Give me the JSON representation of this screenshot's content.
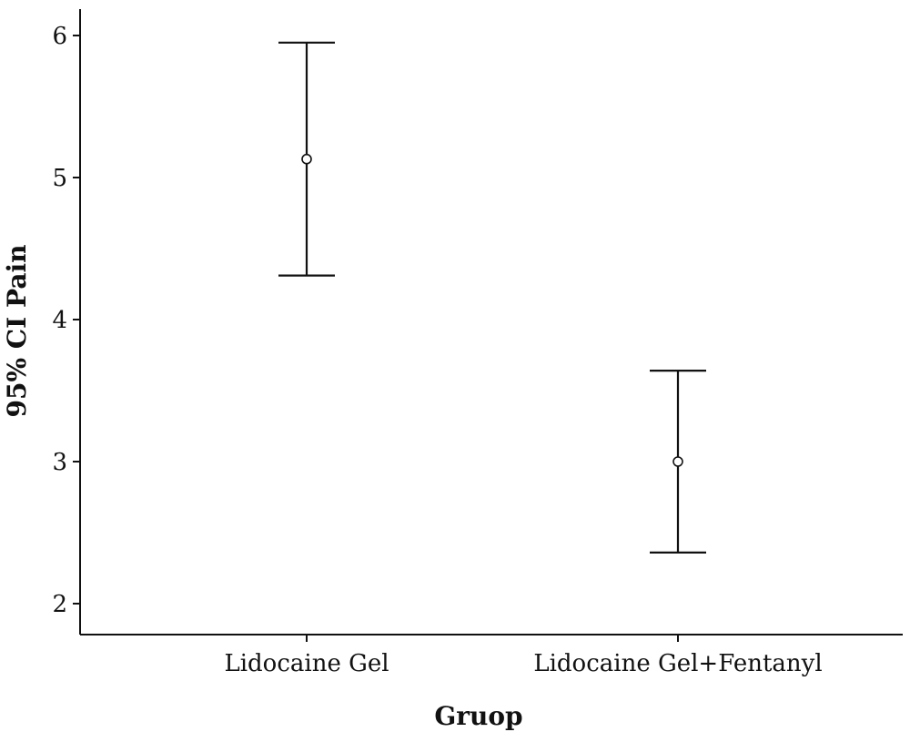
{
  "chart_data": {
    "type": "errorbar",
    "xlabel": "Gruop",
    "ylabel": "95% CI Pain",
    "ylim": [
      1.8,
      6.2
    ],
    "yticks": [
      2,
      3,
      4,
      5,
      6
    ],
    "categories": [
      "Lidocaine Gel",
      "Lidocaine Gel+Fentanyl"
    ],
    "points": [
      {
        "category": "Lidocaine Gel",
        "mean": 5.13,
        "lower": 4.31,
        "upper": 5.95
      },
      {
        "category": "Lidocaine Gel+Fentanyl",
        "mean": 3.0,
        "lower": 2.36,
        "upper": 3.64
      }
    ],
    "grid": false,
    "legend": "none"
  }
}
